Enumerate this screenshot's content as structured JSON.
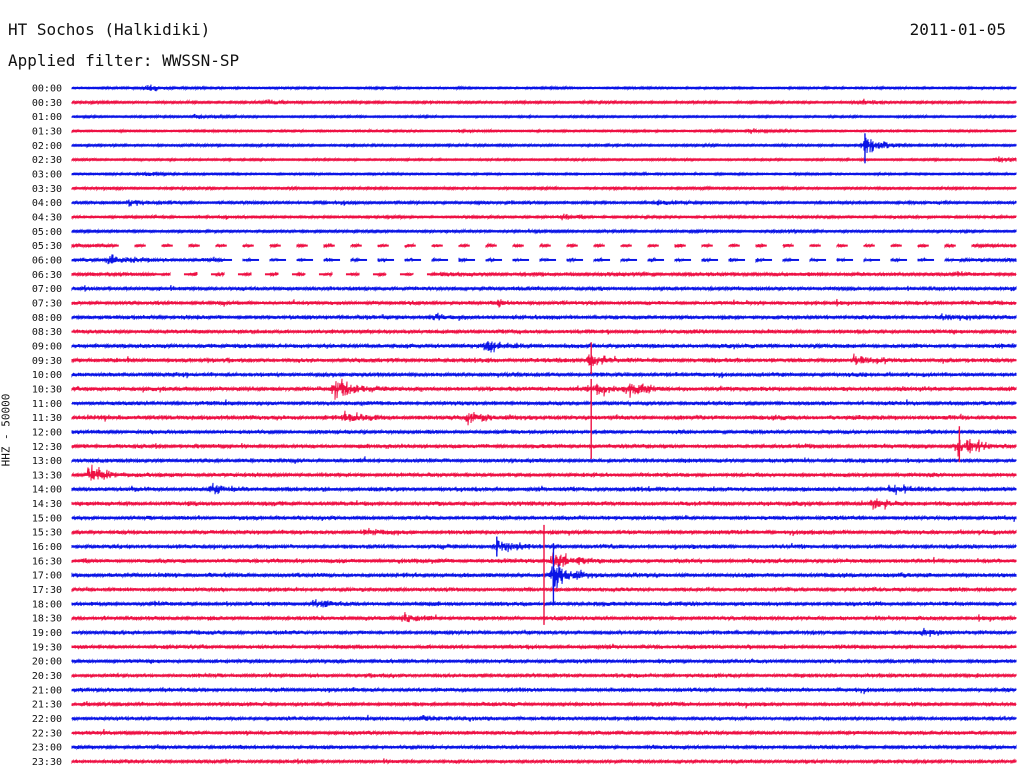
{
  "header": {
    "station": "HT Sochos (Halkidiki)",
    "date": "2011-01-05",
    "filter": "Applied filter: WWSSN-SP"
  },
  "colors": {
    "even": "#0a14e6",
    "odd": "#ee1144"
  },
  "chart_data": {
    "type": "helicorder",
    "channel_label": "HHZ - 50000",
    "rows": [
      "00:00",
      "00:30",
      "01:00",
      "01:30",
      "02:00",
      "02:30",
      "03:00",
      "03:30",
      "04:00",
      "04:30",
      "05:00",
      "05:30",
      "06:00",
      "06:30",
      "07:00",
      "07:30",
      "08:00",
      "08:30",
      "09:00",
      "09:30",
      "10:00",
      "10:30",
      "11:00",
      "11:30",
      "12:00",
      "12:30",
      "13:00",
      "13:30",
      "14:00",
      "14:30",
      "15:00",
      "15:30",
      "16:00",
      "16:30",
      "17:00",
      "17:30",
      "18:00",
      "18:30",
      "19:00",
      "19:30",
      "20:00",
      "20:30",
      "21:00",
      "21:30",
      "22:00",
      "22:30",
      "23:00",
      "23:30"
    ],
    "noise": [
      1,
      1.3,
      1,
      1,
      1.3,
      1,
      1,
      1.3,
      1.6,
      1.4,
      1.5,
      2.2,
      2.6,
      2.5,
      2.4,
      2.4,
      2.6,
      2.5,
      2.8,
      2.8,
      2.6,
      3,
      2.5,
      3,
      2.4,
      2.6,
      2.5,
      2.5,
      2.8,
      2.8,
      2.5,
      2.5,
      2.6,
      2.8,
      2.8,
      2.6,
      2.6,
      2.5,
      2.4,
      2.4,
      2.3,
      2.3,
      2.3,
      2.4,
      2.3,
      2.3,
      2.1,
      2.1
    ],
    "events": [
      {
        "row": 0,
        "x": 0.08,
        "amp": 4
      },
      {
        "row": 1,
        "x": 0.21,
        "amp": 3
      },
      {
        "row": 1,
        "x": 0.84,
        "amp": 3
      },
      {
        "row": 2,
        "x": 0.13,
        "amp": 3
      },
      {
        "row": 3,
        "x": 0.72,
        "amp": 3
      },
      {
        "row": 4,
        "x": 0.84,
        "amp": 14
      },
      {
        "row": 5,
        "x": 0.98,
        "amp": 3
      },
      {
        "row": 6,
        "x": 0.08,
        "amp": 3
      },
      {
        "row": 8,
        "x": 0.06,
        "amp": 5
      },
      {
        "row": 8,
        "x": 0.62,
        "amp": 3
      },
      {
        "row": 9,
        "x": 0.52,
        "amp": 4
      },
      {
        "row": 12,
        "x": 0.04,
        "amp": 6
      },
      {
        "row": 15,
        "x": 0.45,
        "amp": 4
      },
      {
        "row": 16,
        "x": 0.38,
        "amp": 5
      },
      {
        "row": 16,
        "x": 0.92,
        "amp": 5
      },
      {
        "row": 18,
        "x": 0.44,
        "amp": 7
      },
      {
        "row": 19,
        "x": 0.55,
        "amp": 10
      },
      {
        "row": 19,
        "x": 0.83,
        "amp": 8
      },
      {
        "row": 21,
        "x": 0.28,
        "amp": 14
      },
      {
        "row": 21,
        "x": 0.55,
        "amp": 8
      },
      {
        "row": 21,
        "x": 0.59,
        "amp": 10
      },
      {
        "row": 23,
        "x": 0.29,
        "amp": 8
      },
      {
        "row": 23,
        "x": 0.42,
        "amp": 10
      },
      {
        "row": 25,
        "x": 0.94,
        "amp": 14
      },
      {
        "row": 27,
        "x": 0.02,
        "amp": 10
      },
      {
        "row": 28,
        "x": 0.15,
        "amp": 6
      },
      {
        "row": 28,
        "x": 0.87,
        "amp": 7
      },
      {
        "row": 29,
        "x": 0.85,
        "amp": 7
      },
      {
        "row": 31,
        "x": 0.31,
        "amp": 5
      },
      {
        "row": 32,
        "x": 0.45,
        "amp": 10
      },
      {
        "row": 33,
        "x": 0.51,
        "amp": 16
      },
      {
        "row": 34,
        "x": 0.51,
        "amp": 20
      },
      {
        "row": 36,
        "x": 0.26,
        "amp": 5
      },
      {
        "row": 37,
        "x": 0.35,
        "amp": 6
      },
      {
        "row": 38,
        "x": 0.9,
        "amp": 5
      },
      {
        "row": 44,
        "x": 0.37,
        "amp": 5
      }
    ],
    "spikes": [
      {
        "row": 4,
        "x": 0.84,
        "up": 12,
        "down": 18
      },
      {
        "row": 19,
        "x": 0.55,
        "up": 18,
        "down": 14
      },
      {
        "row": 21,
        "x": 0.55,
        "up": 10,
        "down": 70
      },
      {
        "row": 25,
        "x": 0.94,
        "up": 20,
        "down": 16
      },
      {
        "row": 32,
        "x": 0.45,
        "up": 10,
        "down": 10
      },
      {
        "row": 33,
        "x": 0.5,
        "up": 36,
        "down": 64
      },
      {
        "row": 34,
        "x": 0.51,
        "up": 32,
        "down": 28
      }
    ],
    "dropouts": [
      {
        "row": 11,
        "from": 0.04,
        "to": 0.96
      },
      {
        "row": 12,
        "from": 0.16,
        "to": 0.94
      },
      {
        "row": 13,
        "from": 0.09,
        "to": 0.38
      }
    ]
  }
}
